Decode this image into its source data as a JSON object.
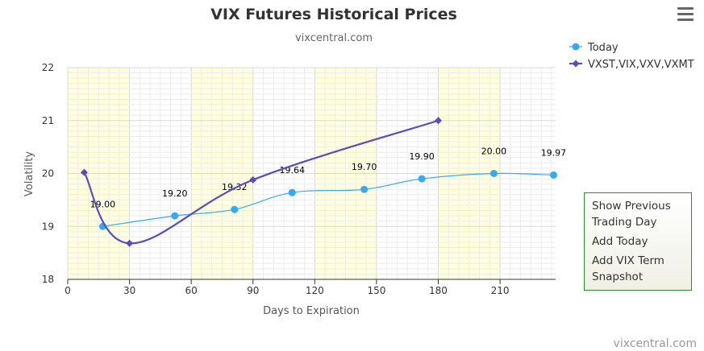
{
  "chart_data": {
    "type": "line",
    "title": "VIX Futures Historical Prices",
    "subtitle": "vixcentral.com",
    "xlabel": "Days to Expiration",
    "ylabel": "Volatility",
    "xlim": [
      0,
      237
    ],
    "ylim": [
      18,
      22
    ],
    "x_ticks": [
      0,
      30,
      60,
      90,
      120,
      150,
      180,
      210
    ],
    "y_ticks": [
      18,
      19,
      20,
      21,
      22
    ],
    "shaded_bands": [
      [
        0,
        30
      ],
      [
        60,
        90
      ],
      [
        120,
        150
      ],
      [
        180,
        210
      ]
    ],
    "grid": true,
    "legend_position": "top-right",
    "series": [
      {
        "name": "Today",
        "color": "#35aaf2",
        "marker": "circle",
        "x": [
          17,
          52,
          81,
          109,
          144,
          172,
          207,
          236
        ],
        "y": [
          19.0,
          19.2,
          19.32,
          19.64,
          19.7,
          19.9,
          20.0,
          19.97
        ],
        "labels": [
          "19.00",
          "19.20",
          "19.32",
          "19.64",
          "19.70",
          "19.90",
          "20.00",
          "19.97"
        ]
      },
      {
        "name": "VXST,VIX,VXV,VXMT",
        "color": "#5a4cbd",
        "marker": "diamond",
        "x": [
          8,
          30,
          90,
          180
        ],
        "y": [
          20.02,
          18.68,
          19.88,
          21.0
        ]
      }
    ]
  },
  "menu": {
    "items": [
      "Show Previous Trading Day",
      "Add Today",
      "Add VIX Term Snapshot"
    ]
  },
  "credit": "vixcentral.com"
}
